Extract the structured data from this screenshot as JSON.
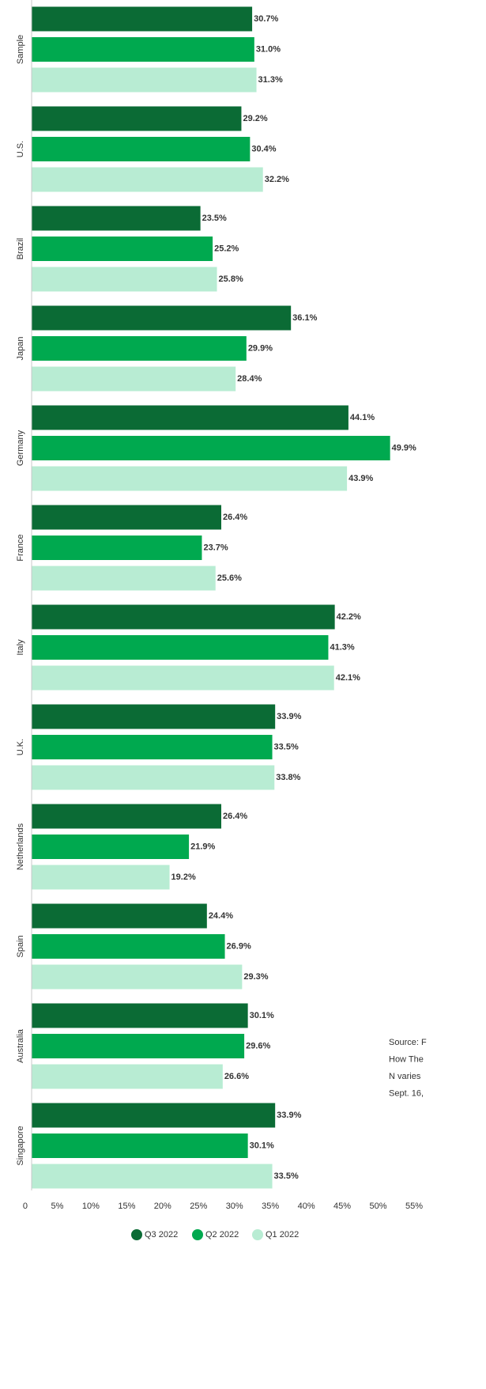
{
  "chart_data": {
    "type": "bar",
    "orientation": "horizontal",
    "categories": [
      "Sample",
      "U.S.",
      "Brazil",
      "Japan",
      "Germany",
      "France",
      "Italy",
      "U.K.",
      "Netherlands",
      "Spain",
      "Australia",
      "Singapore"
    ],
    "series": [
      {
        "name": "Q3 2022",
        "color": "#0b6b35",
        "values": [
          30.7,
          29.2,
          23.5,
          36.1,
          44.1,
          26.4,
          42.2,
          33.9,
          26.4,
          24.4,
          30.1,
          33.9
        ],
        "value_labels": [
          "30.7%",
          "29.2%",
          "23.5%",
          "36.1%",
          "44.1%",
          "26.4%",
          "42.2%",
          "33.9%",
          "26.4%",
          "24.4%",
          "30.1%",
          "33.9%"
        ]
      },
      {
        "name": "Q2 2022",
        "color": "#00a94f",
        "values": [
          31.0,
          30.4,
          25.2,
          29.9,
          49.9,
          23.7,
          41.3,
          33.5,
          21.9,
          26.9,
          29.6,
          30.1
        ],
        "value_labels": [
          "31.0%",
          "30.4%",
          "25.2%",
          "29.9%",
          "49.9%",
          "23.7%",
          "41.3%",
          "33.5%",
          "21.9%",
          "26.9%",
          "29.6%",
          "30.1%"
        ]
      },
      {
        "name": "Q1 2022",
        "color": "#b8ecd3",
        "values": [
          31.3,
          32.2,
          25.8,
          28.4,
          43.9,
          25.6,
          42.1,
          33.8,
          19.2,
          29.3,
          26.6,
          33.5
        ],
        "value_labels": [
          "31.3%",
          "32.2%",
          "25.8%",
          "28.4%",
          "43.9%",
          "25.6%",
          "42.1%",
          "33.8%",
          "19.2%",
          "29.3%",
          "26.6%",
          "33.5%"
        ]
      }
    ],
    "xlim": [
      0,
      55
    ],
    "xticks": [
      0,
      {
        "value": 5,
        "label": "5%"
      },
      {
        "value": 10,
        "label": "10%"
      },
      {
        "value": 15,
        "label": "15%"
      },
      {
        "value": 20,
        "label": "20%"
      },
      {
        "value": 25,
        "label": "25%"
      },
      {
        "value": 30,
        "label": "30%"
      },
      {
        "value": 35,
        "label": "35%"
      },
      {
        "value": 40,
        "label": "40%"
      },
      {
        "value": 45,
        "label": "45%"
      },
      {
        "value": 50,
        "label": "50%"
      },
      {
        "value": 55,
        "label": "55%"
      }
    ],
    "source_lines": [
      "Source: F",
      "How The",
      "N varies",
      "Sept. 16,"
    ]
  }
}
